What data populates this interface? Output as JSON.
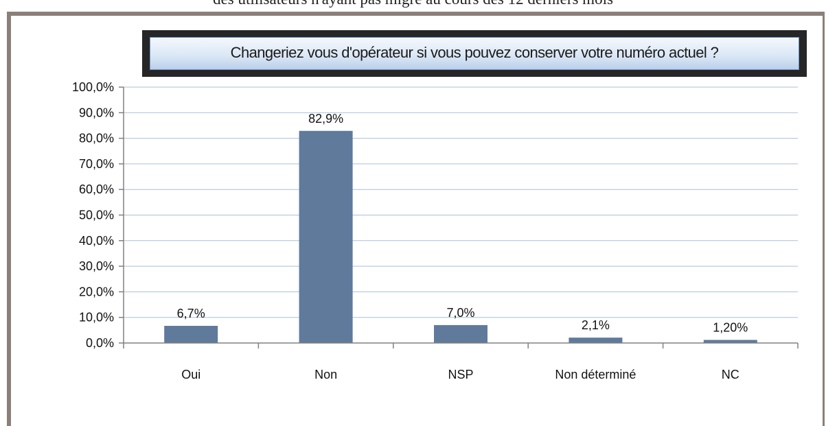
{
  "header": {
    "caption": "des utilisateurs n'ayant pas migré au cours des 12 derniers mois"
  },
  "chart_data": {
    "type": "bar",
    "title": "Changeriez vous d'opérateur si vous pouvez conserver votre numéro actuel ?",
    "categories": [
      "Oui",
      "Non",
      "NSP",
      "Non déterminé",
      "NC"
    ],
    "values": [
      6.7,
      82.9,
      7.0,
      2.1,
      1.2
    ],
    "data_labels": [
      "6,7%",
      "82,9%",
      "7,0%",
      "2,1%",
      "1,20%"
    ],
    "ylim": [
      0,
      100
    ],
    "yticks": [
      0,
      10,
      20,
      30,
      40,
      50,
      60,
      70,
      80,
      90,
      100
    ],
    "ytick_labels": [
      "0,0%",
      "10,0%",
      "20,0%",
      "30,0%",
      "40,0%",
      "50,0%",
      "60,0%",
      "70,0%",
      "80,0%",
      "90,0%",
      "100,0%"
    ],
    "xlabel": "",
    "ylabel": "",
    "grid": true,
    "legend": "none",
    "colors": {
      "bar": "#5f7a9b",
      "grid": "#a9bfd8",
      "axis": "#808080",
      "frame": "#8c7f79"
    }
  }
}
